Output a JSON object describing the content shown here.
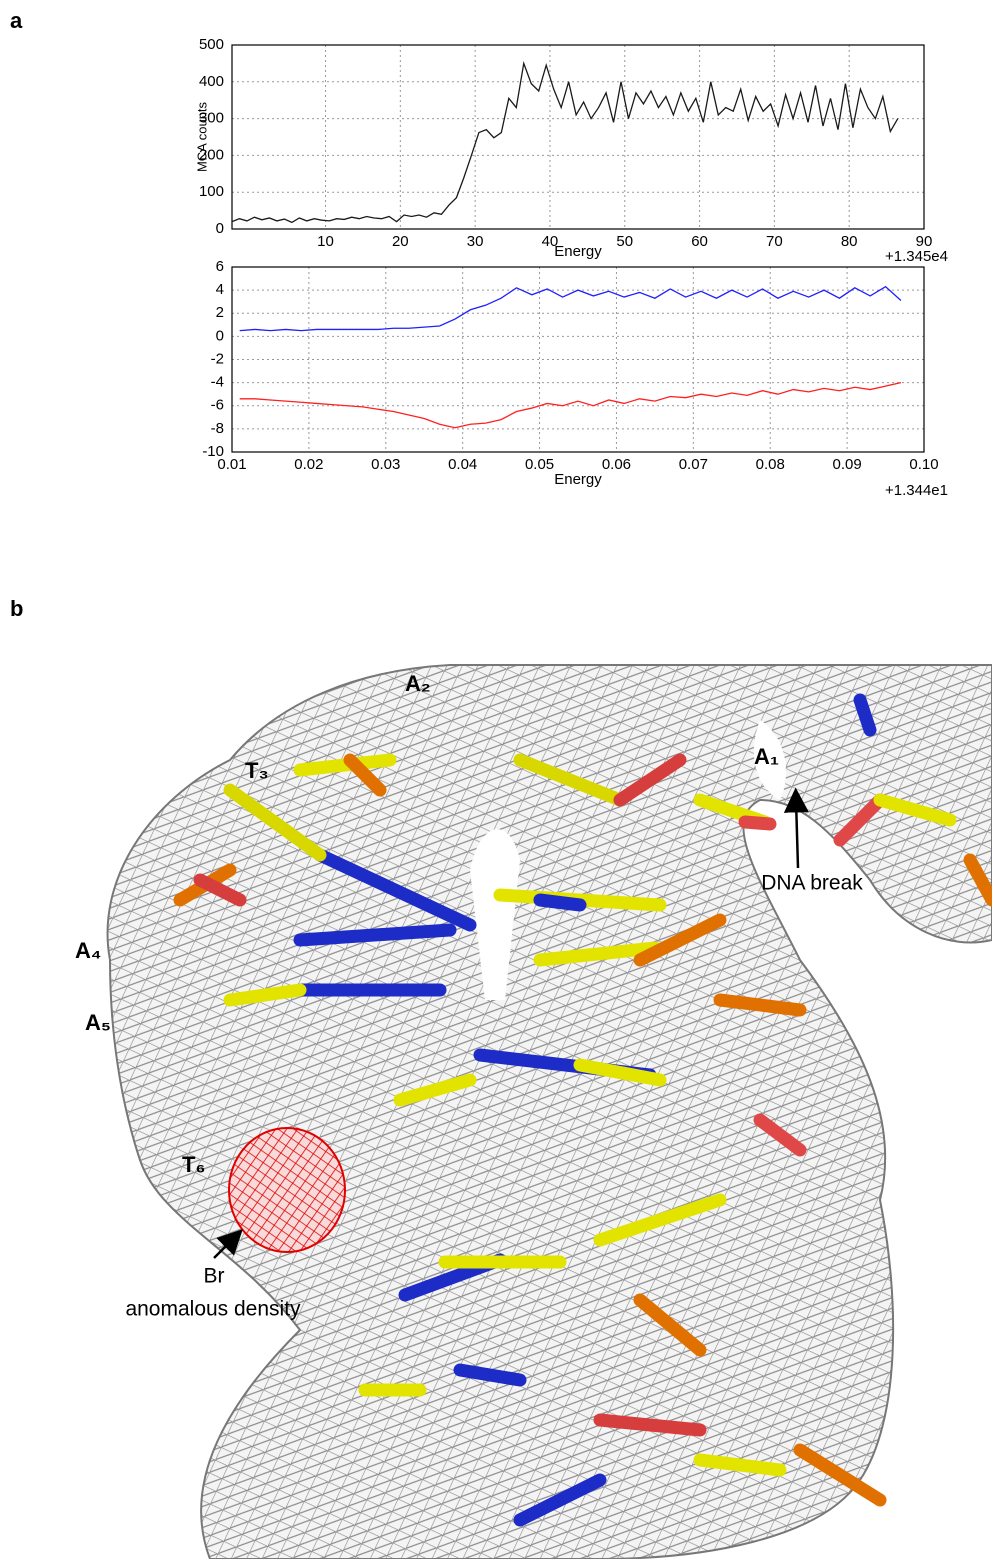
{
  "panel_labels": [
    "a",
    "b"
  ],
  "chart_data": [
    {
      "type": "line",
      "ylabel": "MCA counts",
      "xlabel": "Energy",
      "x_offset_label": "+1.345e4",
      "x": [
        -2.5,
        -1.5,
        -0.5,
        0.5,
        1.5,
        2.5,
        3.5,
        4.5,
        5.5,
        6.5,
        7.5,
        8.5,
        9.5,
        10.5,
        11.5,
        12.5,
        13.5,
        14.5,
        15.5,
        16.5,
        17.5,
        18.5,
        19.5,
        20.5,
        21.5,
        22.5,
        23.5,
        24.5,
        25.5,
        26.5,
        27.5,
        28.5,
        29.5,
        30.5,
        31.5,
        32.5,
        33.5,
        34.5,
        35.5,
        36.5,
        37.5,
        38.5,
        39.5,
        40.5,
        41.5,
        42.5,
        43.5,
        44.5,
        45.5,
        46.5,
        47.5,
        48.5,
        49.5,
        50.5,
        51.5,
        52.5,
        53.5,
        54.5,
        55.5,
        56.5,
        57.5,
        58.5,
        59.5,
        60.5,
        61.5,
        62.5,
        63.5,
        64.5,
        65.5,
        66.5,
        67.5,
        68.5,
        69.5,
        70.5,
        71.5,
        72.5,
        73.5,
        74.5,
        75.5,
        76.5,
        77.5,
        78.5,
        79.5,
        80.5,
        81.5,
        82.5,
        83.5,
        84.5,
        85.5,
        86.5
      ],
      "values": [
        20,
        28,
        22,
        32,
        25,
        30,
        22,
        27,
        18,
        30,
        22,
        28,
        24,
        22,
        28,
        26,
        32,
        28,
        34,
        30,
        28,
        34,
        20,
        38,
        34,
        38,
        32,
        44,
        40,
        65,
        85,
        140,
        200,
        262,
        270,
        248,
        262,
        355,
        330,
        450,
        395,
        375,
        445,
        380,
        330,
        400,
        310,
        345,
        300,
        330,
        370,
        290,
        400,
        300,
        370,
        340,
        375,
        330,
        360,
        310,
        370,
        320,
        355,
        290,
        400,
        310,
        330,
        320,
        380,
        295,
        360,
        320,
        340,
        280,
        365,
        300,
        370,
        290,
        390,
        280,
        355,
        270,
        395,
        275,
        380,
        330,
        300,
        360,
        265,
        300
      ],
      "color": "#1a1a1a",
      "xlim": [
        -2.5,
        90
      ],
      "xticks": [
        10,
        20,
        30,
        40,
        50,
        60,
        70,
        80,
        90
      ],
      "ylim": [
        0,
        500
      ],
      "yticks": [
        0,
        100,
        200,
        300,
        400,
        500
      ],
      "grid": true
    },
    {
      "type": "line",
      "xlabel": "Energy",
      "x_offset_label": "+1.344e1",
      "x": [
        0.011,
        0.013,
        0.015,
        0.017,
        0.019,
        0.021,
        0.023,
        0.025,
        0.027,
        0.029,
        0.031,
        0.033,
        0.035,
        0.037,
        0.039,
        0.041,
        0.043,
        0.045,
        0.047,
        0.049,
        0.051,
        0.053,
        0.055,
        0.057,
        0.059,
        0.061,
        0.063,
        0.065,
        0.067,
        0.069,
        0.071,
        0.073,
        0.075,
        0.077,
        0.079,
        0.081,
        0.083,
        0.085,
        0.087,
        0.089,
        0.091,
        0.093,
        0.095,
        0.097
      ],
      "series": [
        {
          "color": "#1f1fff",
          "values": [
            0.5,
            0.6,
            0.5,
            0.6,
            0.5,
            0.6,
            0.6,
            0.6,
            0.6,
            0.6,
            0.7,
            0.7,
            0.8,
            0.9,
            1.5,
            2.3,
            2.7,
            3.3,
            4.2,
            3.6,
            4.1,
            3.4,
            4.0,
            3.5,
            3.9,
            3.4,
            3.8,
            3.3,
            4.1,
            3.4,
            3.9,
            3.3,
            4.0,
            3.4,
            4.1,
            3.3,
            3.9,
            3.4,
            4.0,
            3.3,
            4.2,
            3.5,
            4.3,
            3.1
          ]
        },
        {
          "color": "#ff2020",
          "values": [
            -5.4,
            -5.4,
            -5.5,
            -5.6,
            -5.7,
            -5.8,
            -5.9,
            -6.0,
            -6.1,
            -6.3,
            -6.5,
            -6.8,
            -7.1,
            -7.6,
            -7.9,
            -7.6,
            -7.5,
            -7.2,
            -6.5,
            -6.2,
            -5.8,
            -6.0,
            -5.6,
            -6.0,
            -5.5,
            -5.8,
            -5.4,
            -5.6,
            -5.2,
            -5.3,
            -5.0,
            -5.2,
            -4.9,
            -5.1,
            -4.7,
            -5.0,
            -4.6,
            -4.8,
            -4.5,
            -4.7,
            -4.4,
            -4.6,
            -4.3,
            -4.0
          ]
        }
      ],
      "xlim": [
        0.01,
        0.1
      ],
      "xticks": [
        0.01,
        0.02,
        0.03,
        0.04,
        0.05,
        0.06,
        0.07,
        0.08,
        0.09,
        {
          "value": 0.1,
          "label": "0.10"
        }
      ],
      "ylim": [
        -10,
        6
      ],
      "yticks": [
        -10,
        -8,
        -6,
        -4,
        -2,
        0,
        2,
        4,
        6
      ],
      "grid": true
    }
  ],
  "structure": {
    "labels": [
      "A₂",
      "T₃",
      "A₁",
      "A₄",
      "A₅",
      "T₆"
    ],
    "dna_break": "DNA break",
    "br": "Br",
    "br_density": "anomalous density"
  }
}
